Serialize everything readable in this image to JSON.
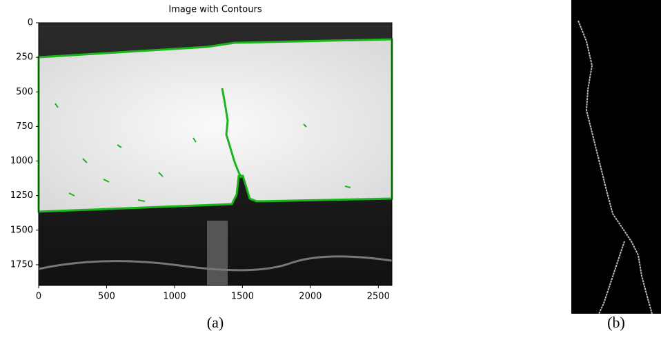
{
  "chart_data": {
    "type": "image",
    "title": "Image with Contours",
    "xlim": [
      0,
      2600
    ],
    "ylim": [
      1900,
      0
    ],
    "xticks": [
      0,
      500,
      1000,
      1500,
      2000,
      2500
    ],
    "yticks": [
      0,
      250,
      500,
      750,
      1000,
      1250,
      1500,
      1750
    ]
  },
  "captions": [
    "(a)",
    "(b)"
  ]
}
